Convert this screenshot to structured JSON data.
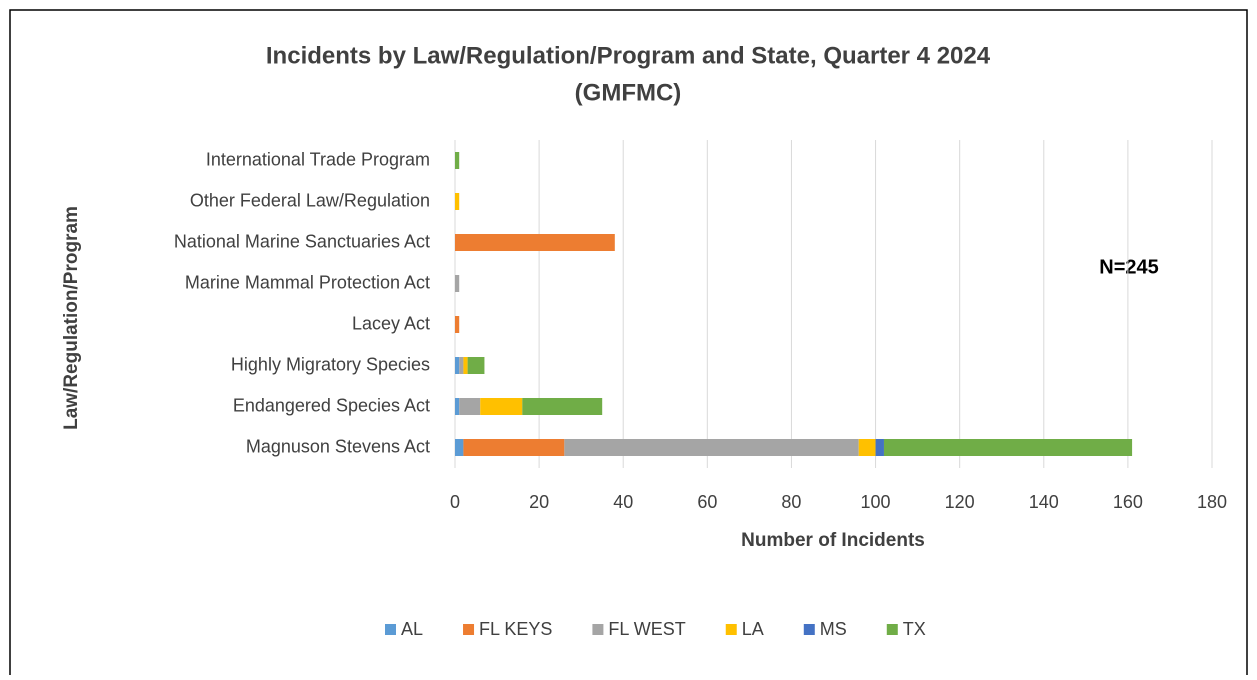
{
  "chart_data": {
    "type": "stacked_bar_horizontal",
    "title": "Incidents by Law/Regulation/Program and State, Quarter 4 2024",
    "subtitle": "(GMFMC)",
    "x_label": "Number of Incidents",
    "y_label": "Law/Regulation/Program",
    "annotation": "N=245",
    "categories": [
      "Magnuson Stevens Act",
      "Endangered Species Act",
      "Highly Migratory Species",
      "Lacey Act",
      "Marine Mammal Protection Act",
      "National Marine Sanctuaries Act",
      "Other Federal Law/Regulation",
      "International Trade Program"
    ],
    "series": [
      {
        "name": "AL",
        "color": "#5b9bd5",
        "values": [
          2,
          1,
          1,
          0,
          0,
          0,
          0,
          0
        ]
      },
      {
        "name": "FL KEYS",
        "color": "#ed7d31",
        "values": [
          24,
          0,
          0,
          1,
          0,
          38,
          0,
          0
        ]
      },
      {
        "name": "FL WEST",
        "color": "#a5a5a5",
        "values": [
          70,
          5,
          1,
          0,
          1,
          0,
          0,
          0
        ]
      },
      {
        "name": "LA",
        "color": "#ffc000",
        "values": [
          4,
          10,
          1,
          0,
          0,
          0,
          1,
          0
        ]
      },
      {
        "name": "MS",
        "color": "#4472c4",
        "values": [
          2,
          0,
          0,
          0,
          0,
          0,
          0,
          0
        ]
      },
      {
        "name": "TX",
        "color": "#70ad47",
        "values": [
          59,
          19,
          4,
          0,
          0,
          0,
          0,
          1
        ]
      }
    ],
    "xlim": [
      0,
      180
    ],
    "xticks": [
      0,
      20,
      40,
      60,
      80,
      100,
      120,
      140,
      160,
      180
    ],
    "grid": true,
    "legend": "bottom"
  }
}
